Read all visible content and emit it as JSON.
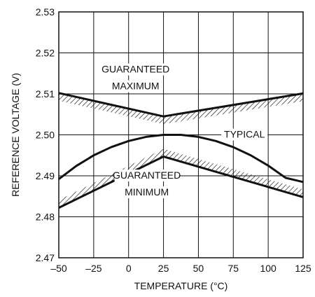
{
  "chart_data": {
    "type": "line",
    "xlabel": "TEMPERATURE (°C)",
    "ylabel": "REFERENCE VOLTAGE (V)",
    "xlim": [
      -50,
      125
    ],
    "ylim": [
      2.47,
      2.53
    ],
    "x_ticks": [
      -50,
      -25,
      0,
      25,
      50,
      75,
      100,
      125
    ],
    "y_ticks": [
      2.47,
      2.48,
      2.49,
      2.5,
      2.51,
      2.52,
      2.53
    ],
    "x_tick_labels": [
      "–50",
      "–25",
      "0",
      "25",
      "50",
      "75",
      "100",
      "125"
    ],
    "y_tick_labels": [
      "2.47",
      "2.48",
      "2.49",
      "2.50",
      "2.51",
      "2.52",
      "2.53"
    ],
    "grid": true,
    "series": [
      {
        "name": "GUARANTEED MAXIMUM",
        "hatch": "below",
        "x": [
          -50,
          25,
          125
        ],
        "y": [
          2.5102,
          2.5045,
          2.5101
        ]
      },
      {
        "name": "TYPICAL",
        "hatch": "none",
        "x": [
          -50,
          -37.5,
          -25,
          -12.5,
          0,
          12.5,
          25,
          37.5,
          50,
          62.5,
          75,
          87.5,
          100,
          112.5,
          125
        ],
        "y": [
          2.4892,
          2.4924,
          2.495,
          2.497,
          2.4985,
          2.4995,
          2.5,
          2.5,
          2.4995,
          2.4985,
          2.497,
          2.495,
          2.4925,
          2.4895,
          2.4885
        ]
      },
      {
        "name": "GUARANTEED MINIMUM",
        "hatch": "above",
        "x": [
          -50,
          25,
          125
        ],
        "y": [
          2.4822,
          2.4947,
          2.4848
        ]
      }
    ],
    "annotations": [
      {
        "lines": [
          "GUARANTEED",
          "MAXIMUM"
        ],
        "x": 5,
        "y": [
          2.5152,
          2.5111
        ]
      },
      {
        "lines": [
          "TYPICAL"
        ],
        "x": 83,
        "y": [
          2.4993
        ]
      },
      {
        "lines": [
          "GUARANTEED",
          "MINIMUM"
        ],
        "x": 13,
        "y": [
          2.4893,
          2.4852
        ]
      }
    ]
  }
}
